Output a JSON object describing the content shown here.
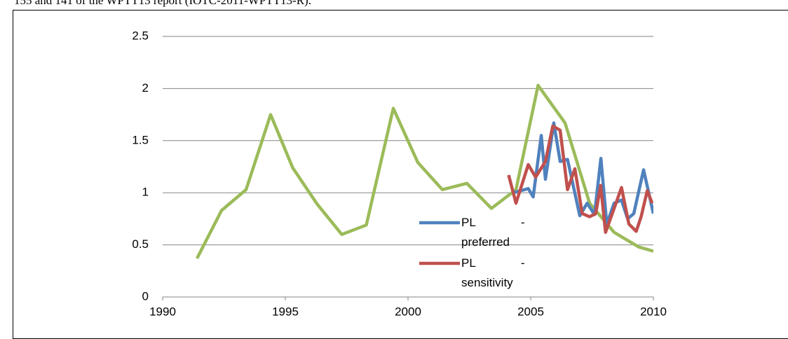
{
  "document_text": "155 and 141 of the WPTT13 report (IOTC-2011-WPTT13-R).",
  "chart_data": {
    "type": "line",
    "xlim": [
      1990,
      2010
    ],
    "xticks": [
      1990,
      1995,
      2000,
      2005,
      2010
    ],
    "ylim": [
      0,
      2.5
    ],
    "yticks": [
      0,
      0.5,
      1,
      1.5,
      2,
      2.5
    ],
    "grid": true,
    "legend": "inside",
    "series": [
      {
        "color": "#9bbb59",
        "x": [
          1991.4,
          1992.4,
          1993.4,
          1994.4,
          1995.3,
          1996.3,
          1997.3,
          1998.3,
          1999.4,
          2000.4,
          2001.4,
          2002.4,
          2003.4,
          2004.4,
          2005.3,
          2006.4,
          2007.4,
          2008.4,
          2009.4,
          2010
        ],
        "values": [
          0.37,
          0.83,
          1.03,
          1.75,
          1.24,
          0.89,
          0.6,
          0.69,
          1.81,
          1.29,
          1.03,
          1.09,
          0.85,
          1.03,
          2.03,
          1.67,
          0.9,
          0.62,
          0.48,
          0.44
        ]
      },
      {
        "name": "PL - preferred",
        "color": "#4f81bd",
        "x": [
          2004.3,
          2004.6,
          2004.9,
          2005.1,
          2005.43,
          2005.6,
          2005.94,
          2006.2,
          2006.5,
          2006.75,
          2007.0,
          2007.3,
          2007.6,
          2007.86,
          2008.1,
          2008.4,
          2008.7,
          2008.95,
          2009.2,
          2009.6,
          2010.0
        ],
        "values": [
          1.0,
          1.02,
          1.04,
          0.96,
          1.55,
          1.13,
          1.67,
          1.3,
          1.32,
          1.05,
          0.78,
          0.9,
          0.79,
          1.33,
          0.7,
          0.9,
          0.93,
          0.75,
          0.8,
          1.22,
          0.8
        ]
      },
      {
        "name": "PL - sensitivity",
        "color": "#c0504d",
        "x": [
          2004.1,
          2004.4,
          2004.9,
          2005.2,
          2005.6,
          2005.9,
          2006.2,
          2006.5,
          2006.8,
          2007.1,
          2007.4,
          2007.65,
          2007.85,
          2008.05,
          2008.4,
          2008.7,
          2009.0,
          2009.3,
          2009.5,
          2009.75,
          2009.95
        ],
        "values": [
          1.17,
          0.9,
          1.27,
          1.15,
          1.3,
          1.64,
          1.6,
          1.03,
          1.23,
          0.8,
          0.77,
          0.8,
          1.07,
          0.62,
          0.85,
          1.05,
          0.7,
          0.63,
          0.77,
          1.02,
          0.9
        ]
      }
    ]
  }
}
